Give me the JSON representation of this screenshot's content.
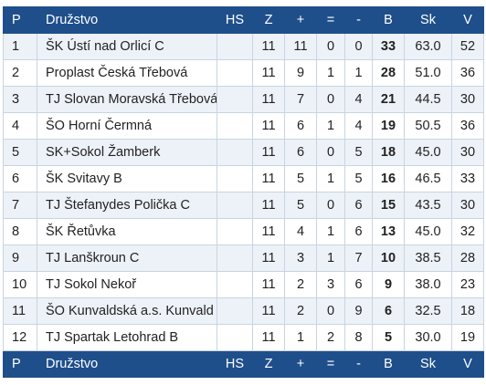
{
  "headers": {
    "pos": "P",
    "team": "Družstvo",
    "hs": "HS",
    "played": "Z",
    "wins": "+",
    "draws": "=",
    "losses": "-",
    "points": "B",
    "score": "Sk",
    "v": "V"
  },
  "rows": [
    {
      "pos": "1",
      "team": "ŠK Ústí nad Orlicí C",
      "hs": "",
      "played": "11",
      "wins": "11",
      "draws": "0",
      "losses": "0",
      "points": "33",
      "score": "63.0",
      "v": "52"
    },
    {
      "pos": "2",
      "team": "Proplast Česká Třebová",
      "hs": "",
      "played": "11",
      "wins": "9",
      "draws": "1",
      "losses": "1",
      "points": "28",
      "score": "51.0",
      "v": "36"
    },
    {
      "pos": "3",
      "team": "TJ Slovan Moravská Třebová",
      "hs": "",
      "played": "11",
      "wins": "7",
      "draws": "0",
      "losses": "4",
      "points": "21",
      "score": "44.5",
      "v": "30"
    },
    {
      "pos": "4",
      "team": "ŠO Horní Čermná",
      "hs": "",
      "played": "11",
      "wins": "6",
      "draws": "1",
      "losses": "4",
      "points": "19",
      "score": "50.5",
      "v": "36"
    },
    {
      "pos": "5",
      "team": "SK+Sokol Žamberk",
      "hs": "",
      "played": "11",
      "wins": "6",
      "draws": "0",
      "losses": "5",
      "points": "18",
      "score": "45.0",
      "v": "30"
    },
    {
      "pos": "6",
      "team": "ŠK Svitavy B",
      "hs": "",
      "played": "11",
      "wins": "5",
      "draws": "1",
      "losses": "5",
      "points": "16",
      "score": "46.5",
      "v": "33"
    },
    {
      "pos": "7",
      "team": "TJ Štefanydes Polička C",
      "hs": "",
      "played": "11",
      "wins": "5",
      "draws": "0",
      "losses": "6",
      "points": "15",
      "score": "43.5",
      "v": "30"
    },
    {
      "pos": "8",
      "team": "ŠK Řetůvka",
      "hs": "",
      "played": "11",
      "wins": "4",
      "draws": "1",
      "losses": "6",
      "points": "13",
      "score": "45.0",
      "v": "32"
    },
    {
      "pos": "9",
      "team": "TJ Lanškroun C",
      "hs": "",
      "played": "11",
      "wins": "3",
      "draws": "1",
      "losses": "7",
      "points": "10",
      "score": "38.5",
      "v": "28"
    },
    {
      "pos": "10",
      "team": "TJ Sokol Nekoř",
      "hs": "",
      "played": "11",
      "wins": "2",
      "draws": "3",
      "losses": "6",
      "points": "9",
      "score": "38.0",
      "v": "23"
    },
    {
      "pos": "11",
      "team": "ŠO Kunvaldská a.s. Kunvald",
      "hs": "",
      "played": "11",
      "wins": "2",
      "draws": "0",
      "losses": "9",
      "points": "6",
      "score": "32.5",
      "v": "18"
    },
    {
      "pos": "12",
      "team": "TJ Spartak Letohrad B",
      "hs": "",
      "played": "11",
      "wins": "1",
      "draws": "2",
      "losses": "8",
      "points": "5",
      "score": "30.0",
      "v": "19"
    }
  ]
}
